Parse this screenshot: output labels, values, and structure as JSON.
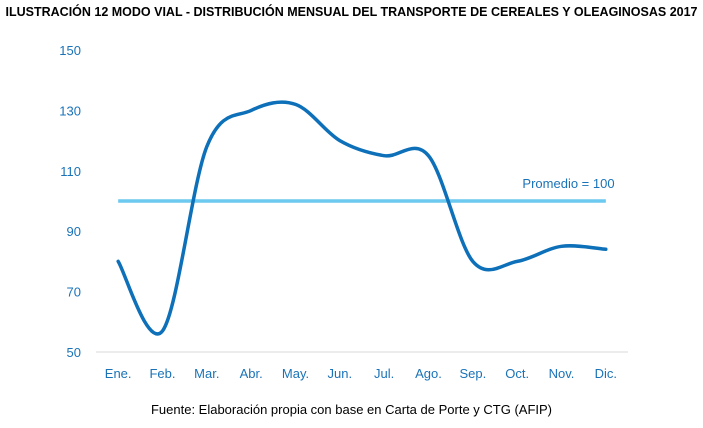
{
  "colors": {
    "series": "#0d70b8",
    "average": "#6cc9ef",
    "axis_text": "#1a73b8",
    "axis_line": "#d9d9d9",
    "title": "#000000"
  },
  "chart_data": {
    "type": "line",
    "title": "ILUSTRACIÓN 12 MODO VIAL - DISTRIBUCIÓN MENSUAL DEL TRANSPORTE DE CEREALES Y OLEAGINOSAS 2017",
    "source": "Fuente: Elaboración propia con base en Carta de Porte y CTG (AFIP)",
    "categories": [
      "Ene.",
      "Feb.",
      "Mar.",
      "Abr.",
      "May.",
      "Jun.",
      "Jul.",
      "Ago.",
      "Sep.",
      "Oct.",
      "Nov.",
      "Dic."
    ],
    "series": [
      {
        "values": [
          80,
          57,
          118,
          130,
          132,
          120,
          115,
          115,
          80,
          80,
          85,
          84
        ]
      }
    ],
    "reference_line": {
      "value": 100,
      "label": "Promedio = 100"
    },
    "yticks": [
      50,
      70,
      90,
      110,
      130,
      150
    ],
    "ylim": [
      50,
      150
    ],
    "xlabel": "",
    "ylabel": "",
    "grid": false
  }
}
